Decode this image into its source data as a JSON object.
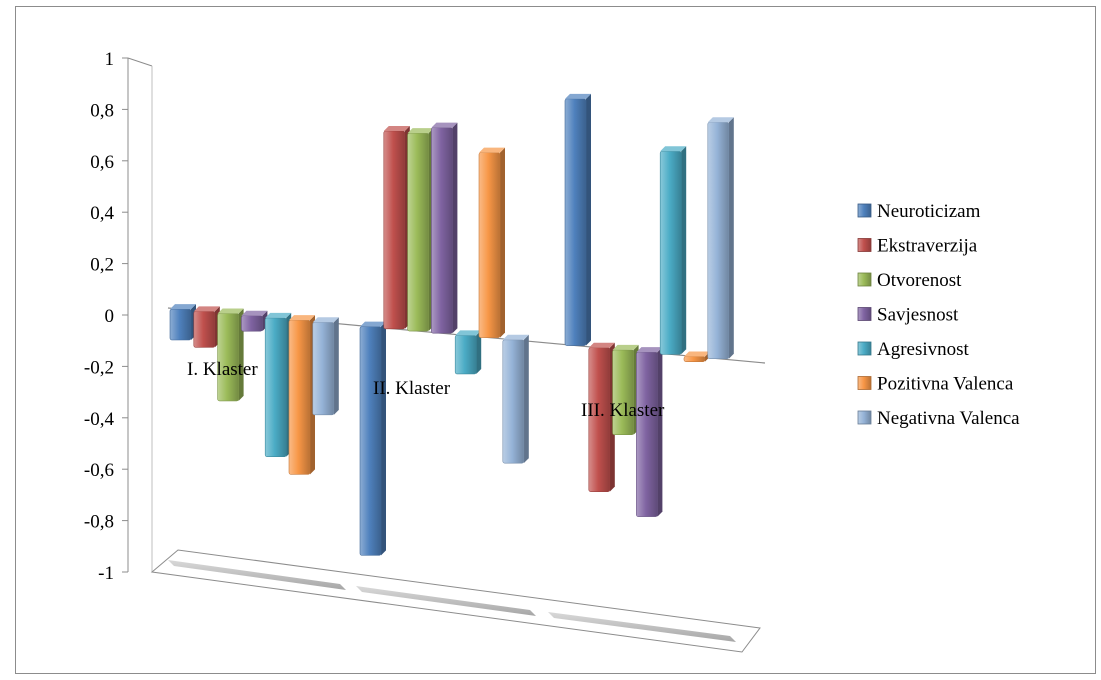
{
  "chart_data": {
    "type": "bar",
    "style": "3d-clustered-column",
    "categories": [
      "I. Klaster",
      "II. Klaster",
      "III. Klaster"
    ],
    "series": [
      {
        "name": "Neuroticizam",
        "values": [
          -0.12,
          -0.89,
          0.96
        ],
        "color": "#4f81bd"
      },
      {
        "name": "Ekstraverzija",
        "values": [
          -0.14,
          0.77,
          -0.56
        ],
        "color": "#c0504d"
      },
      {
        "name": "Otvorenost",
        "values": [
          -0.34,
          0.77,
          -0.33
        ],
        "color": "#9bbb59"
      },
      {
        "name": "Savjesnost",
        "values": [
          -0.06,
          0.8,
          -0.64
        ],
        "color": "#8064a2"
      },
      {
        "name": "Agresivnost",
        "values": [
          -0.54,
          -0.15,
          0.79
        ],
        "color": "#4bacc6"
      },
      {
        "name": "Pozitivna Valenca",
        "values": [
          -0.6,
          0.72,
          -0.02
        ],
        "color": "#f79646"
      },
      {
        "name": "Negativna Valenca",
        "values": [
          -0.36,
          -0.48,
          0.92
        ],
        "color": "#95b3d7"
      }
    ],
    "y_ticks": [
      "1",
      "0,8",
      "0,6",
      "0,4",
      "0,2",
      "0",
      "-0,2",
      "-0,4",
      "-0,6",
      "-0,8",
      "-1"
    ],
    "ylim": [
      -1,
      1
    ],
    "grid": false,
    "legend_position": "right"
  }
}
